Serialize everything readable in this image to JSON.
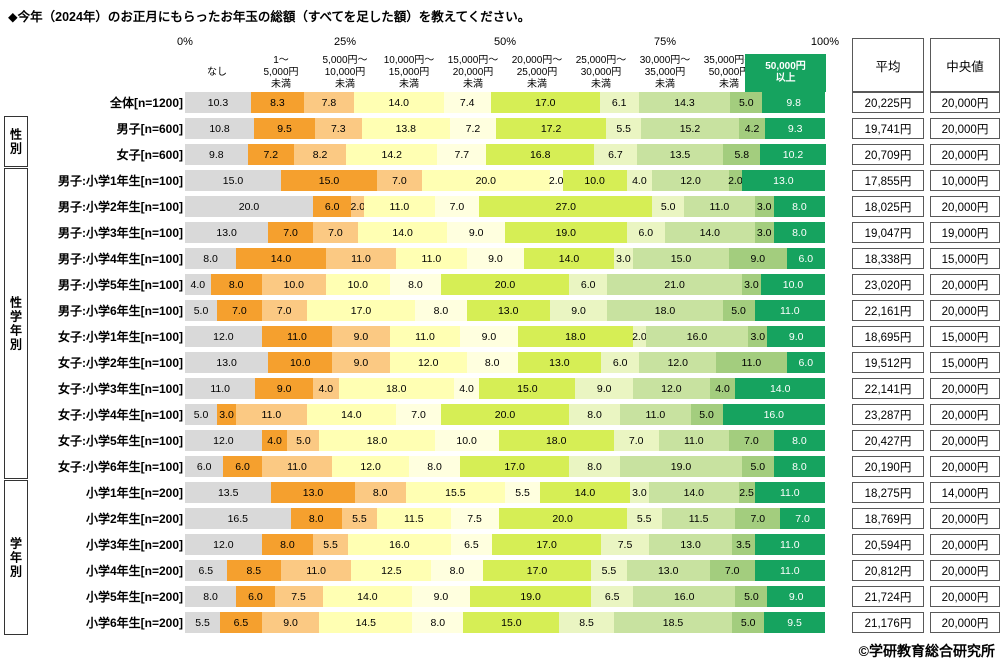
{
  "chart_data": {
    "type": "bar",
    "stacked": true,
    "orientation": "horizontal",
    "unit": "%",
    "xlim": [
      0,
      100
    ],
    "x_ticks": [
      "0%",
      "25%",
      "50%",
      "75%",
      "100%"
    ],
    "title": "◆今年（2024年）のお正月にもらったお年玉の総額（すべてを足した額）を教えてください。",
    "categories": [
      {
        "label": "なし",
        "label_lines": [
          "なし"
        ],
        "color": "#d9d9d9",
        "text_color": "#000000"
      },
      {
        "label": "1～5,000円未満",
        "label_lines": [
          "1～",
          "5,000円",
          "未満"
        ],
        "color": "#f5a02e",
        "text_color": "#000000"
      },
      {
        "label": "5,000円～10,000円未満",
        "label_lines": [
          "5,000円～",
          "10,000円",
          "未満"
        ],
        "color": "#fbc983",
        "text_color": "#000000"
      },
      {
        "label": "10,000円～15,000円未満",
        "label_lines": [
          "10,000円～",
          "15,000円",
          "未満"
        ],
        "color": "#ffffb3",
        "text_color": "#000000"
      },
      {
        "label": "15,000円～20,000円未満",
        "label_lines": [
          "15,000円～",
          "20,000円",
          "未満"
        ],
        "color": "#ffffdf",
        "text_color": "#000000"
      },
      {
        "label": "20,000円～25,000円未満",
        "label_lines": [
          "20,000円～",
          "25,000円",
          "未満"
        ],
        "color": "#d6ee55",
        "text_color": "#000000"
      },
      {
        "label": "25,000円～30,000円未満",
        "label_lines": [
          "25,000円～",
          "30,000円",
          "未満"
        ],
        "color": "#eaf5c2",
        "text_color": "#000000"
      },
      {
        "label": "30,000円～35,000円未満",
        "label_lines": [
          "30,000円～",
          "35,000円",
          "未満"
        ],
        "color": "#c8e2a0",
        "text_color": "#000000"
      },
      {
        "label": "35,000円～50,000円未満",
        "label_lines": [
          "35,000円～",
          "50,000円",
          "未満"
        ],
        "color": "#a3cd7e",
        "text_color": "#000000"
      },
      {
        "label": "50,000円以上",
        "label_lines": [
          "50,000円",
          "以上"
        ],
        "color": "#16a35f",
        "text_color": "#ffffff",
        "header_box": true
      }
    ],
    "rows": [
      {
        "label": "全体[n=1200]",
        "values": [
          10.3,
          8.3,
          7.8,
          14.0,
          7.4,
          17.0,
          6.1,
          14.3,
          5.0,
          9.8
        ],
        "average": "20,225円",
        "median": "20,000円"
      },
      {
        "label": "男子[n=600]",
        "values": [
          10.8,
          9.5,
          7.3,
          13.8,
          7.2,
          17.2,
          5.5,
          15.2,
          4.2,
          9.3
        ],
        "average": "19,741円",
        "median": "20,000円"
      },
      {
        "label": "女子[n=600]",
        "values": [
          9.8,
          7.2,
          8.2,
          14.2,
          7.7,
          16.8,
          6.7,
          13.5,
          5.8,
          10.2
        ],
        "average": "20,709円",
        "median": "20,000円"
      },
      {
        "label": "男子:小学1年生[n=100]",
        "values": [
          15.0,
          15.0,
          7.0,
          20.0,
          2.0,
          10.0,
          4.0,
          12.0,
          2.0,
          13.0
        ],
        "average": "17,855円",
        "median": "10,000円"
      },
      {
        "label": "男子:小学2年生[n=100]",
        "values": [
          20.0,
          6.0,
          2.0,
          11.0,
          7.0,
          27.0,
          5.0,
          11.0,
          3.0,
          8.0
        ],
        "average": "18,025円",
        "median": "20,000円"
      },
      {
        "label": "男子:小学3年生[n=100]",
        "values": [
          13.0,
          7.0,
          7.0,
          14.0,
          9.0,
          19.0,
          6.0,
          14.0,
          3.0,
          8.0
        ],
        "average": "19,047円",
        "median": "19,000円"
      },
      {
        "label": "男子:小学4年生[n=100]",
        "values": [
          8.0,
          14.0,
          11.0,
          11.0,
          9.0,
          14.0,
          3.0,
          15.0,
          9.0,
          6.0
        ],
        "average": "18,338円",
        "median": "15,000円"
      },
      {
        "label": "男子:小学5年生[n=100]",
        "values": [
          4.0,
          8.0,
          10.0,
          10.0,
          8.0,
          20.0,
          6.0,
          21.0,
          3.0,
          10.0
        ],
        "average": "23,020円",
        "median": "20,000円"
      },
      {
        "label": "男子:小学6年生[n=100]",
        "values": [
          5.0,
          7.0,
          7.0,
          17.0,
          8.0,
          13.0,
          9.0,
          18.0,
          5.0,
          11.0
        ],
        "average": "22,161円",
        "median": "20,000円"
      },
      {
        "label": "女子:小学1年生[n=100]",
        "values": [
          12.0,
          11.0,
          9.0,
          11.0,
          9.0,
          18.0,
          2.0,
          16.0,
          3.0,
          9.0
        ],
        "average": "18,695円",
        "median": "15,000円"
      },
      {
        "label": "女子:小学2年生[n=100]",
        "values": [
          13.0,
          10.0,
          9.0,
          12.0,
          8.0,
          13.0,
          6.0,
          12.0,
          11.0,
          6.0
        ],
        "average": "19,512円",
        "median": "15,000円"
      },
      {
        "label": "女子:小学3年生[n=100]",
        "values": [
          11.0,
          9.0,
          4.0,
          18.0,
          4.0,
          15.0,
          9.0,
          12.0,
          4.0,
          14.0
        ],
        "average": "22,141円",
        "median": "20,000円"
      },
      {
        "label": "女子:小学4年生[n=100]",
        "values": [
          5.0,
          3.0,
          11.0,
          14.0,
          7.0,
          20.0,
          8.0,
          11.0,
          5.0,
          16.0
        ],
        "average": "23,287円",
        "median": "20,000円"
      },
      {
        "label": "女子:小学5年生[n=100]",
        "values": [
          12.0,
          4.0,
          5.0,
          18.0,
          10.0,
          18.0,
          7.0,
          11.0,
          7.0,
          8.0
        ],
        "average": "20,427円",
        "median": "20,000円"
      },
      {
        "label": "女子:小学6年生[n=100]",
        "values": [
          6.0,
          6.0,
          11.0,
          12.0,
          8.0,
          17.0,
          8.0,
          19.0,
          5.0,
          8.0
        ],
        "average": "20,190円",
        "median": "20,000円"
      },
      {
        "label": "小学1年生[n=200]",
        "values": [
          13.5,
          13.0,
          8.0,
          15.5,
          5.5,
          14.0,
          3.0,
          14.0,
          2.5,
          11.0
        ],
        "average": "18,275円",
        "median": "14,000円"
      },
      {
        "label": "小学2年生[n=200]",
        "values": [
          16.5,
          8.0,
          5.5,
          11.5,
          7.5,
          20.0,
          5.5,
          11.5,
          7.0,
          7.0
        ],
        "average": "18,769円",
        "median": "20,000円"
      },
      {
        "label": "小学3年生[n=200]",
        "values": [
          12.0,
          8.0,
          5.5,
          16.0,
          6.5,
          17.0,
          7.5,
          13.0,
          3.5,
          11.0
        ],
        "average": "20,594円",
        "median": "20,000円"
      },
      {
        "label": "小学4年生[n=200]",
        "values": [
          6.5,
          8.5,
          11.0,
          12.5,
          8.0,
          17.0,
          5.5,
          13.0,
          7.0,
          11.0
        ],
        "average": "20,812円",
        "median": "20,000円"
      },
      {
        "label": "小学5年生[n=200]",
        "values": [
          8.0,
          6.0,
          7.5,
          14.0,
          9.0,
          19.0,
          6.5,
          16.0,
          5.0,
          9.0
        ],
        "average": "21,724円",
        "median": "20,000円"
      },
      {
        "label": "小学6年生[n=200]",
        "values": [
          5.5,
          6.5,
          9.0,
          14.5,
          8.0,
          15.0,
          8.5,
          18.5,
          5.0,
          9.5
        ],
        "average": "21,176円",
        "median": "20,000円"
      }
    ]
  },
  "summary_columns": {
    "average_label": "平均",
    "median_label": "中央値"
  },
  "groups": [
    {
      "label": "性別",
      "start_row": 1,
      "end_row": 2
    },
    {
      "label": "性学年別",
      "start_row": 3,
      "end_row": 14
    },
    {
      "label": "学年別",
      "start_row": 15,
      "end_row": 20
    }
  ],
  "copyright": "©学研教育総合研究所"
}
